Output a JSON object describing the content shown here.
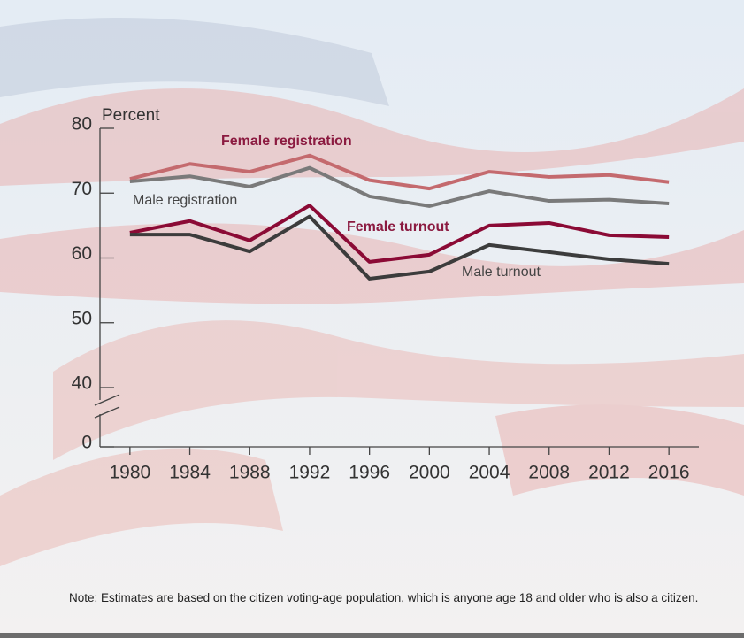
{
  "chart_data": {
    "type": "line",
    "y_label": "Percent",
    "x": [
      1980,
      1984,
      1988,
      1992,
      1996,
      2000,
      2004,
      2008,
      2012,
      2016
    ],
    "xlim": [
      1978,
      2018
    ],
    "xticks": [
      1980,
      1984,
      1988,
      1992,
      1996,
      2000,
      2004,
      2008,
      2012,
      2016
    ],
    "ylim": [
      0,
      80
    ],
    "y_break": [
      0,
      40
    ],
    "yticks": [
      0,
      40,
      50,
      60,
      70,
      80
    ],
    "series": [
      {
        "name": "Female registration",
        "color": "#c46a6e",
        "values": [
          72.2,
          74.5,
          73.3,
          75.8,
          72.0,
          70.7,
          73.3,
          72.5,
          72.8,
          71.7
        ]
      },
      {
        "name": "Male registration",
        "color": "#7a7a7a",
        "values": [
          71.8,
          72.6,
          71.0,
          73.9,
          69.5,
          68.0,
          70.3,
          68.8,
          69.0,
          68.4
        ]
      },
      {
        "name": "Female turnout",
        "color": "#8b0a35",
        "values": [
          63.9,
          65.7,
          62.7,
          68.1,
          59.4,
          60.5,
          65.0,
          65.4,
          63.5,
          63.2
        ]
      },
      {
        "name": "Male turnout",
        "color": "#3c3c3c",
        "values": [
          63.6,
          63.6,
          61.0,
          66.4,
          56.8,
          57.9,
          62.0,
          60.9,
          59.8,
          59.1
        ]
      }
    ],
    "note": "Note: Estimates are based on the citizen voting-age population, which is anyone age 18 and older who is also a citizen."
  }
}
